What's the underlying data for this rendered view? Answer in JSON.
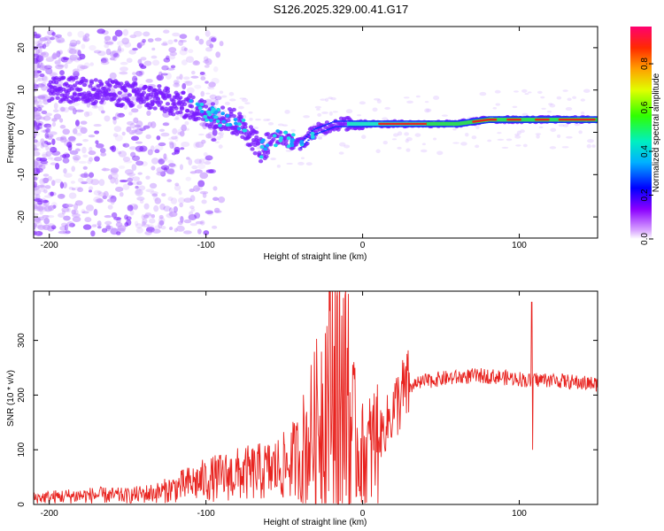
{
  "title": "S126.2025.329.00.41.G17",
  "chart_data": [
    {
      "type": "heatmap",
      "title": "S126.2025.329.00.41.G17",
      "xlabel": "Height of straight line (km)",
      "ylabel": "Frequency (Hz)",
      "xlim": [
        -210,
        150
      ],
      "ylim": [
        -25,
        25
      ],
      "xticks": [
        "-200",
        "-100",
        "0",
        "100"
      ],
      "yticks": [
        "20",
        "10",
        "0",
        "-10",
        "-20"
      ],
      "colorbar": {
        "label": "Normalized spectral amplitude",
        "range": [
          0,
          0.97
        ],
        "ticks": [
          "0.0",
          "0.2",
          "0.4",
          "0.6",
          "0.8"
        ]
      },
      "ridge": {
        "x": [
          -200,
          -180,
          -150,
          -130,
          -110,
          -95,
          -85,
          -75,
          -65,
          -55,
          -48,
          -40,
          -32,
          -25,
          -18,
          -10,
          -5,
          0,
          10,
          20,
          40,
          60,
          80,
          100,
          110,
          120,
          150
        ],
        "freq": [
          10,
          10,
          9,
          8,
          6,
          4,
          3,
          1,
          -4,
          -1,
          -2,
          -3,
          0,
          1,
          2,
          2,
          2,
          2,
          2,
          2,
          2,
          2,
          3,
          3,
          3,
          3,
          3
        ]
      },
      "colors": {
        "ridge_low": "#7a1cff",
        "ridge_mid": "#22e0c8",
        "ridge_high": "#e02a1c"
      }
    },
    {
      "type": "line",
      "xlabel": "Height of straight line (km)",
      "ylabel": "SNR (10 * v/v)",
      "xlim": [
        -210,
        150
      ],
      "ylim": [
        0,
        390
      ],
      "xticks": [
        "-200",
        "-100",
        "0",
        "100"
      ],
      "yticks": [
        "0",
        "100",
        "200",
        "300"
      ],
      "series": [
        {
          "name": "SNR",
          "color": "#e8231f",
          "x": [
            -210,
            -190,
            -170,
            -150,
            -130,
            -120,
            -110,
            -100,
            -90,
            -80,
            -70,
            -60,
            -50,
            -40,
            -30,
            -25,
            -20,
            -15,
            -10,
            -5,
            0,
            5,
            10,
            15,
            20,
            25,
            30,
            40,
            50,
            60,
            70,
            80,
            90,
            100,
            108,
            110,
            120,
            130,
            140,
            150
          ],
          "y": [
            12,
            15,
            17,
            16,
            22,
            30,
            38,
            45,
            50,
            55,
            58,
            62,
            70,
            90,
            140,
            190,
            230,
            250,
            180,
            120,
            90,
            100,
            120,
            145,
            175,
            200,
            215,
            225,
            230,
            232,
            235,
            235,
            232,
            230,
            225,
            228,
            228,
            225,
            222,
            220
          ]
        }
      ],
      "spikes": [
        {
          "x": 108,
          "y_high": 370,
          "y_low": 100
        },
        {
          "x": -16,
          "y_high": 390,
          "y_low": 0
        },
        {
          "x": -9,
          "y_high": 385,
          "y_low": 0
        }
      ]
    }
  ]
}
